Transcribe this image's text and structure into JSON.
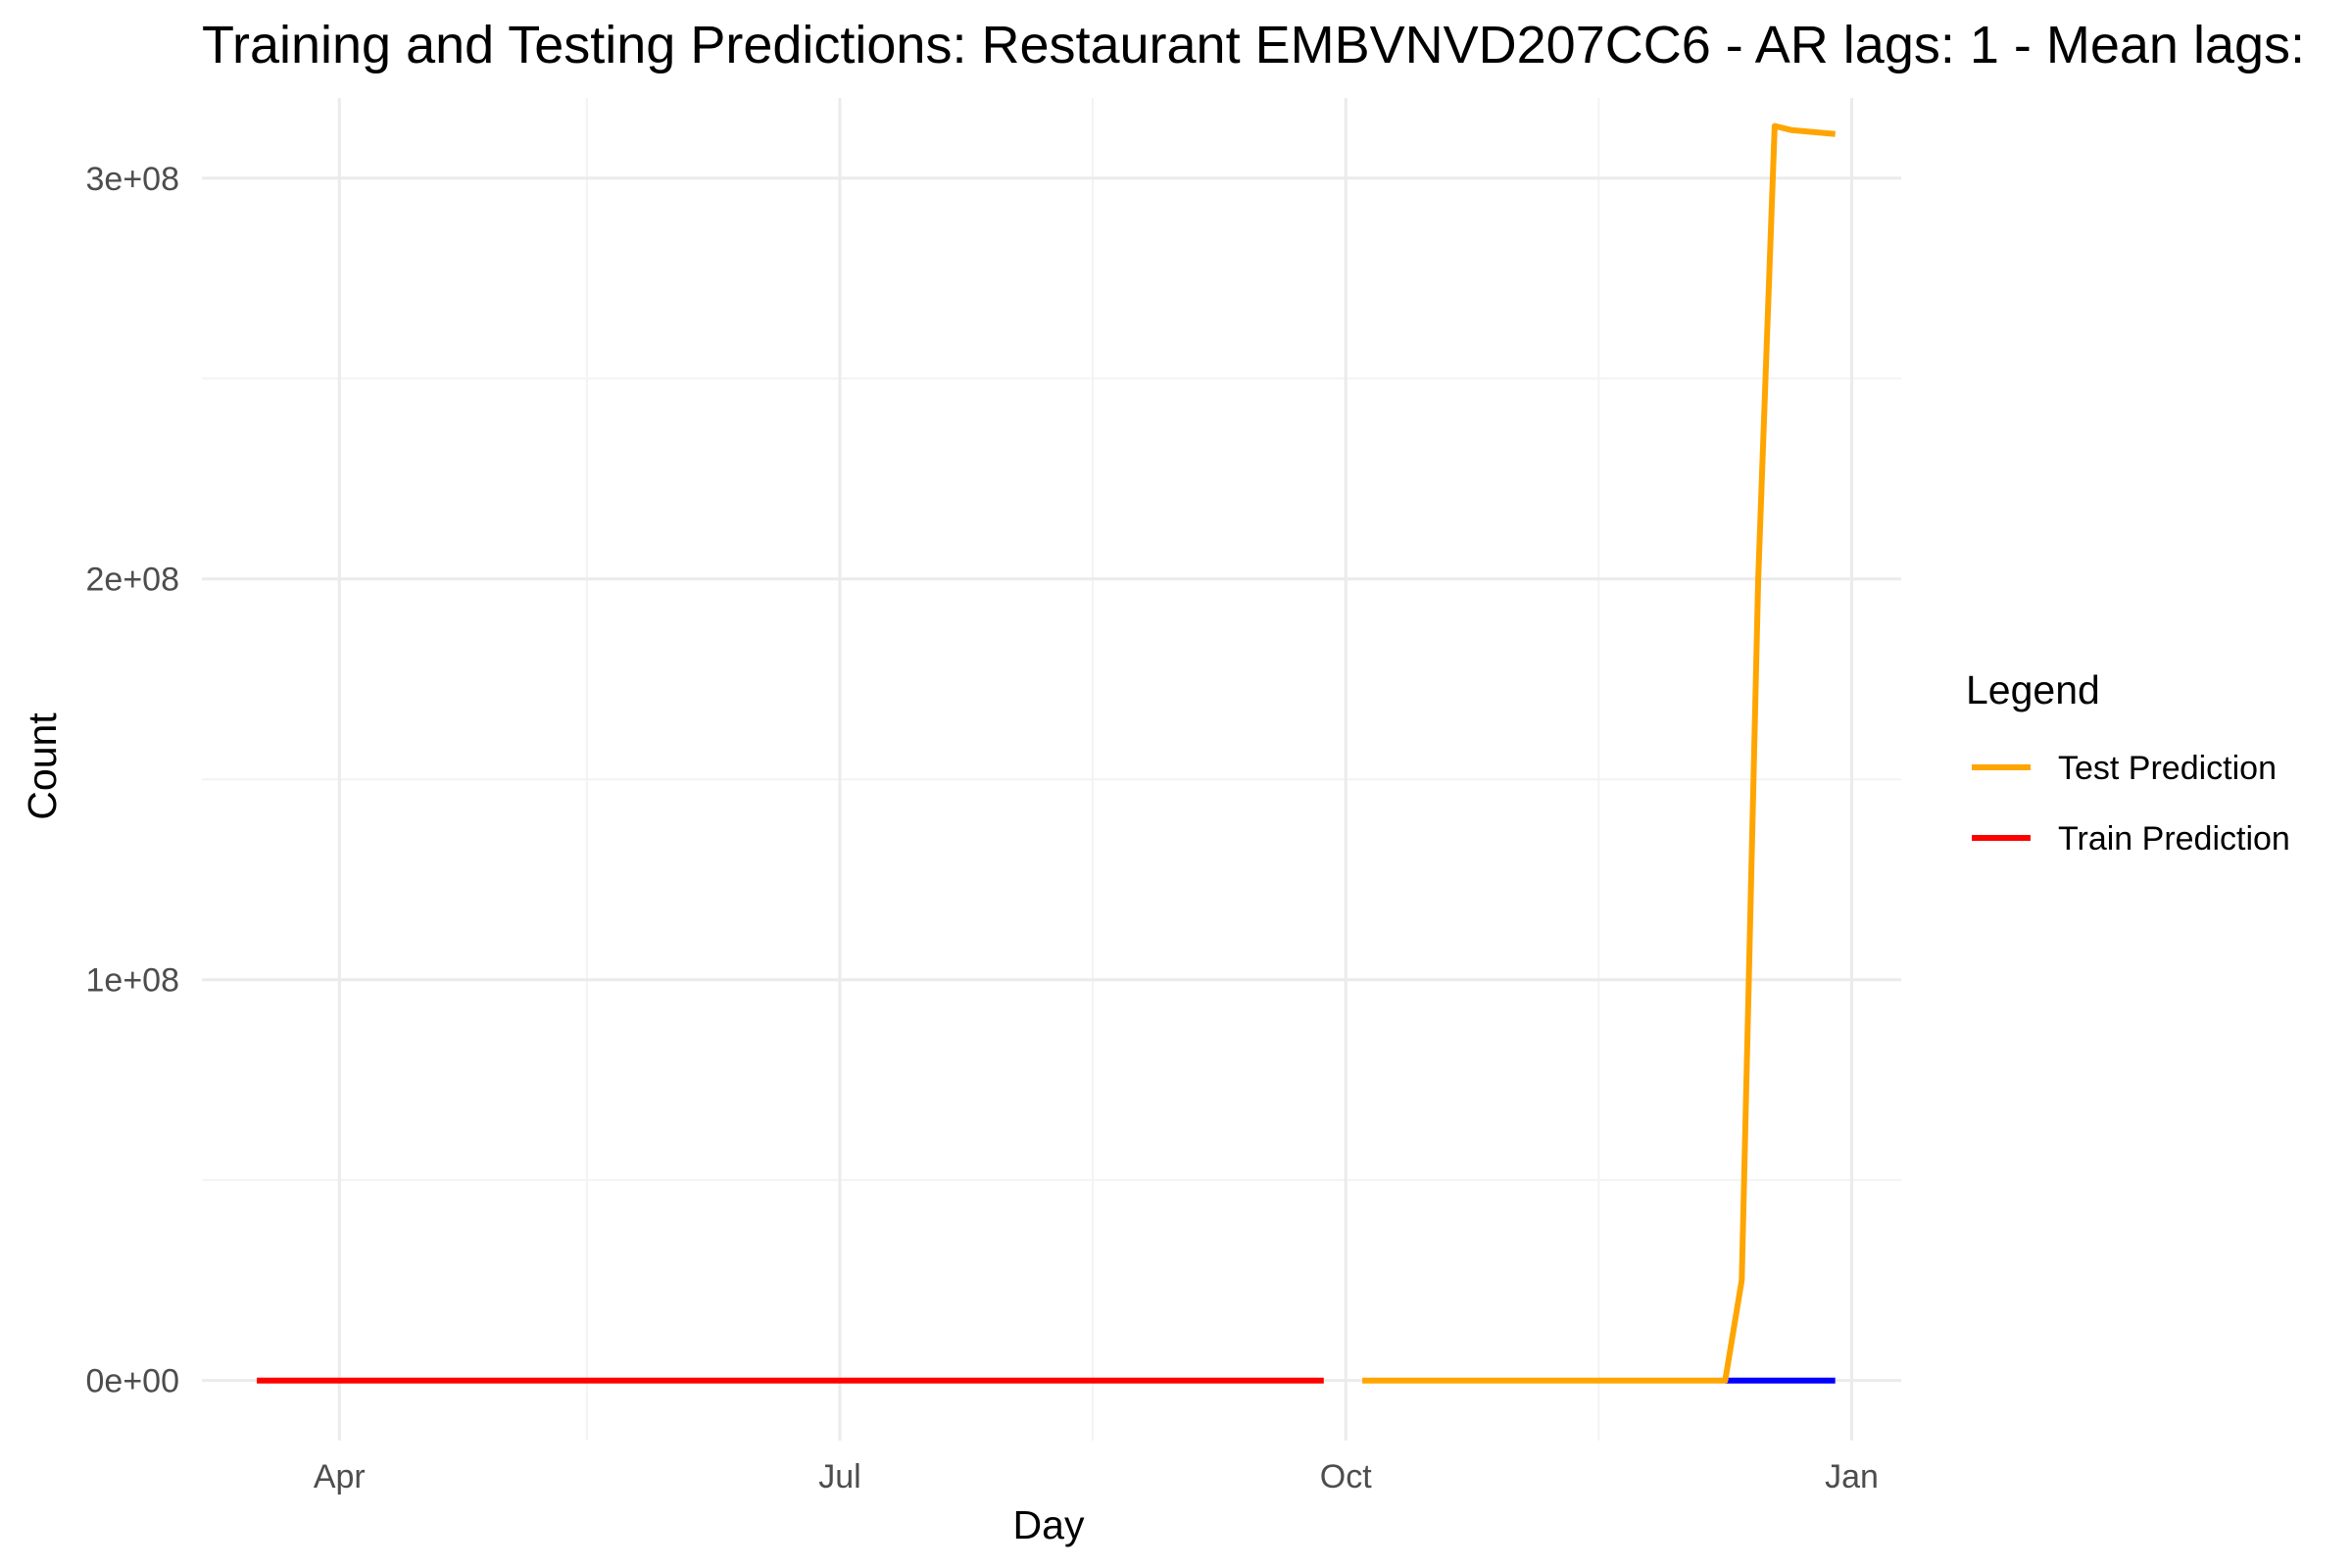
{
  "chart_data": {
    "type": "line",
    "title": "Training and Testing Predictions: Restaurant EMBVNVD207CC6 - AR lags: 1 - Mean lags:",
    "xlabel": "Day",
    "ylabel": "Count",
    "x_type": "date",
    "xlim": [
      "2023-03-07",
      "2024-01-10"
    ],
    "ylim": [
      -15000000,
      320000000
    ],
    "x_ticks": [
      {
        "value": "2023-04-01",
        "label": "Apr"
      },
      {
        "value": "2023-07-01",
        "label": "Jul"
      },
      {
        "value": "2023-10-01",
        "label": "Oct"
      },
      {
        "value": "2024-01-01",
        "label": "Jan"
      }
    ],
    "x_minor_ticks": [
      "2023-05-16",
      "2023-08-16",
      "2023-11-16"
    ],
    "y_ticks": [
      {
        "value": 0,
        "label": "0e+00"
      },
      {
        "value": 100000000,
        "label": "1e+08"
      },
      {
        "value": 200000000,
        "label": "2e+08"
      },
      {
        "value": 300000000,
        "label": "3e+08"
      }
    ],
    "y_minor_ticks": [
      50000000,
      150000000,
      250000000
    ],
    "grid": true,
    "legend": {
      "title": "Legend",
      "placement": "right",
      "entries": [
        {
          "label": "Test Prediction",
          "color": "#FFA500"
        },
        {
          "label": "Train Prediction",
          "color": "#FF0000"
        }
      ]
    },
    "series": [
      {
        "name": "Train Prediction",
        "color": "#FF0000",
        "points": [
          {
            "x": "2023-03-17",
            "y": 0
          },
          {
            "x": "2023-09-27",
            "y": 0
          }
        ]
      },
      {
        "name": "",
        "color": "#0000FF",
        "points": [
          {
            "x": "2023-12-09",
            "y": 0
          },
          {
            "x": "2023-12-29",
            "y": 0
          }
        ]
      },
      {
        "name": "Test Prediction",
        "color": "#FFA500",
        "points": [
          {
            "x": "2023-10-04",
            "y": 0
          },
          {
            "x": "2023-12-09",
            "y": 0
          },
          {
            "x": "2023-12-12",
            "y": 25000000
          },
          {
            "x": "2023-12-15",
            "y": 200000000
          },
          {
            "x": "2023-12-18",
            "y": 313000000
          },
          {
            "x": "2023-12-21",
            "y": 312000000
          },
          {
            "x": "2023-12-29",
            "y": 311000000
          }
        ]
      }
    ]
  }
}
